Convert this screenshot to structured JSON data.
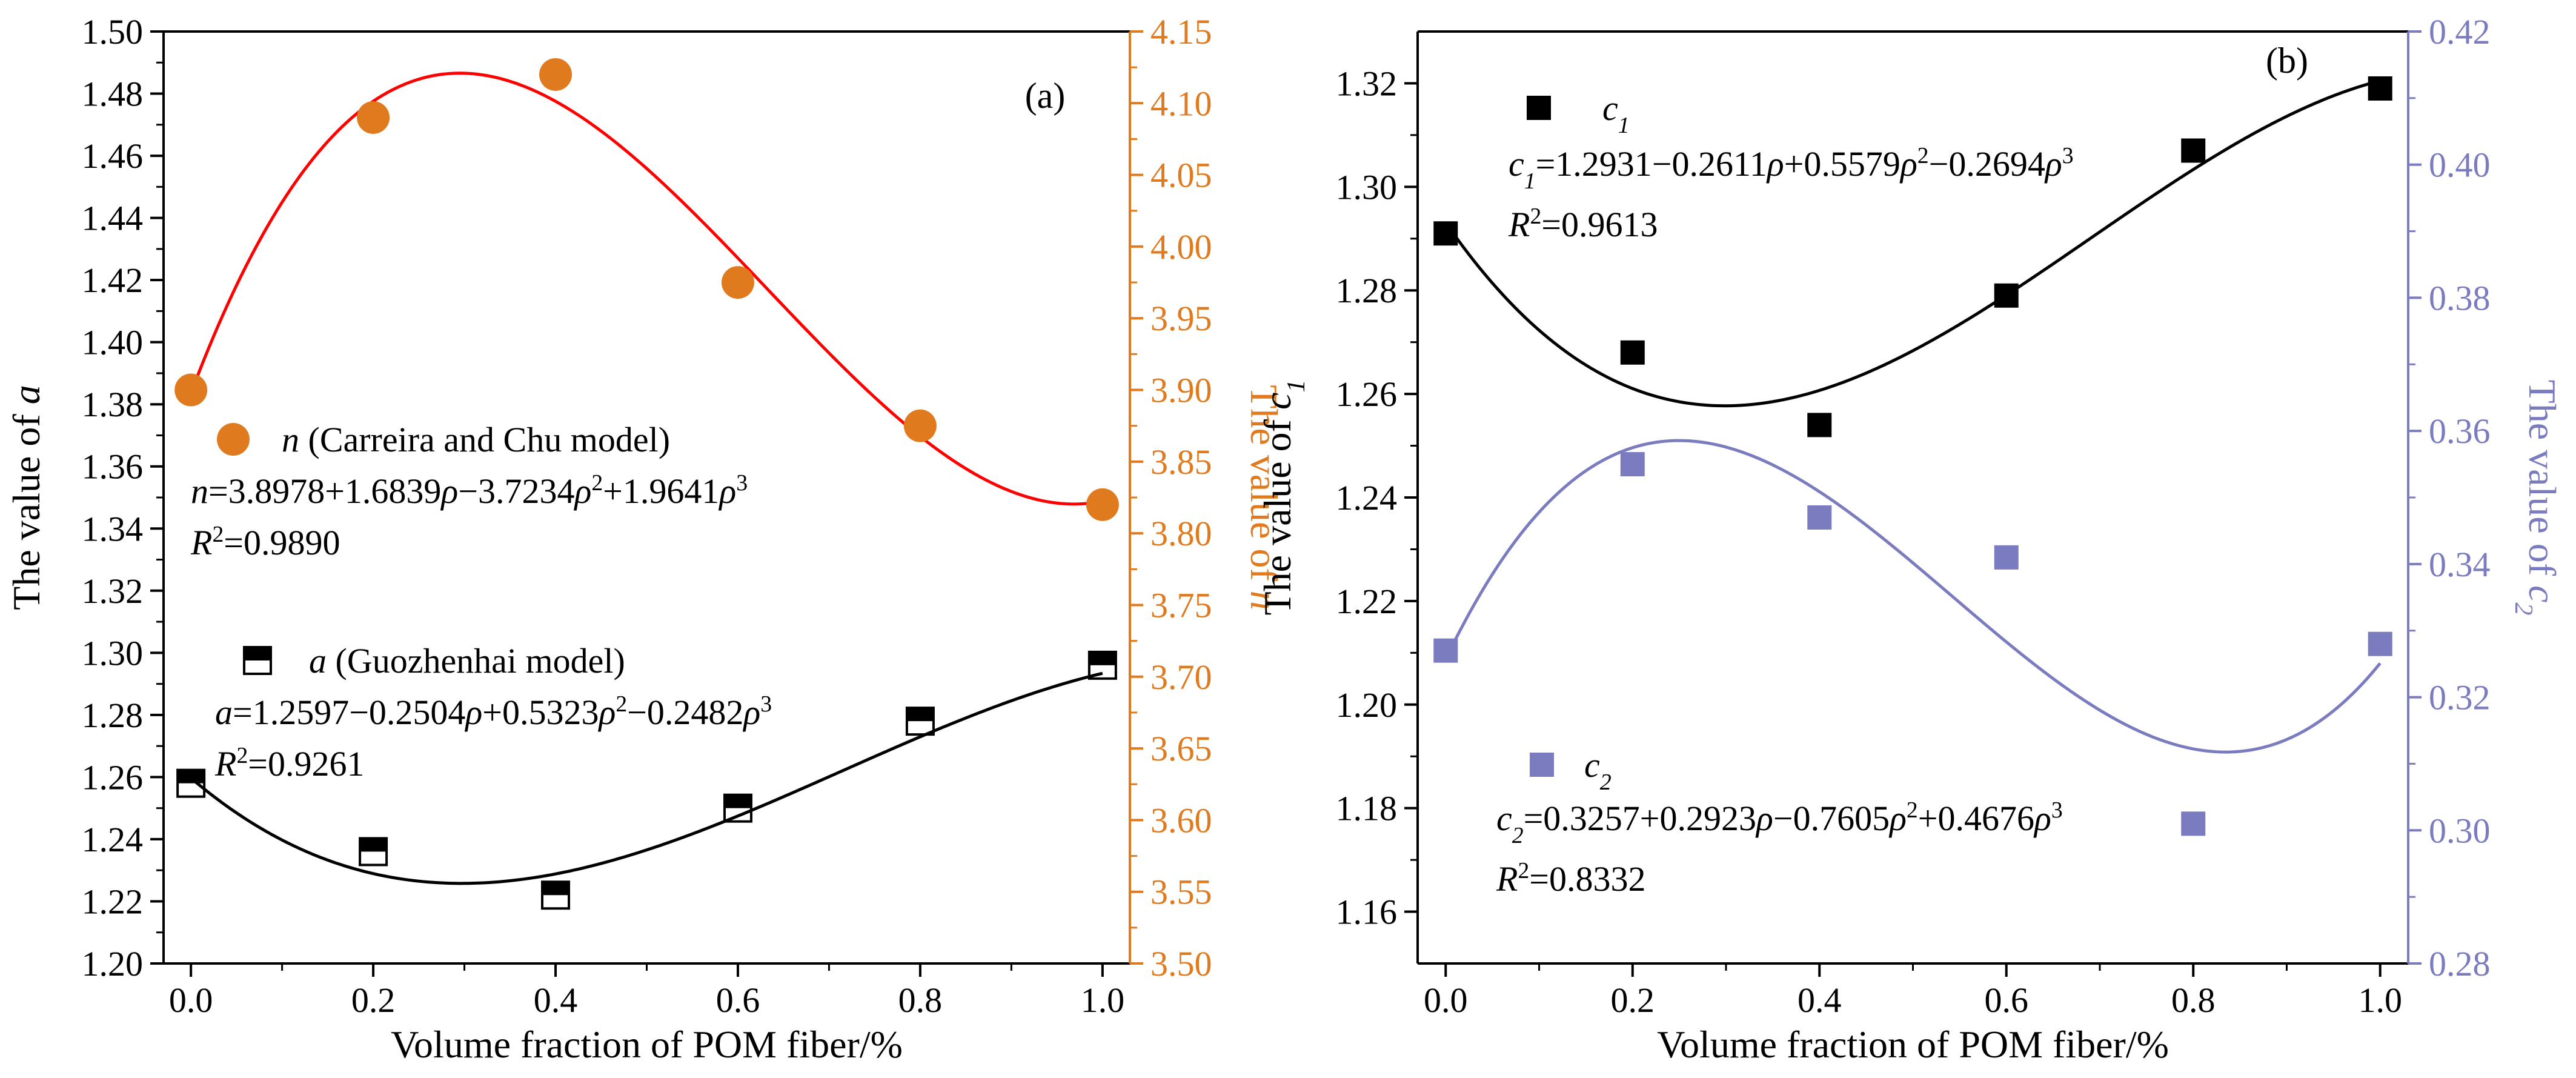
{
  "chart_data": [
    {
      "type": "scatter",
      "panel_label": "(a)",
      "xlabel": "Volume fraction of POM fiber/%",
      "ylabel_left_prefix": "The value of ",
      "ylabel_left_var": "a",
      "ylabel_right_prefix": "The value of ",
      "ylabel_right_var": "n",
      "xlim": [
        -0.03,
        1.03
      ],
      "ylim_left": [
        1.2,
        1.5
      ],
      "ylim_right": [
        3.5,
        4.15
      ],
      "x_ticks": [
        "0.0",
        "0.2",
        "0.4",
        "0.6",
        "0.8",
        "1.0"
      ],
      "y_left_ticks": [
        "1.20",
        "1.22",
        "1.24",
        "1.26",
        "1.28",
        "1.30",
        "1.32",
        "1.34",
        "1.36",
        "1.38",
        "1.40",
        "1.42",
        "1.44",
        "1.46",
        "1.48",
        "1.50"
      ],
      "y_right_ticks": [
        "3.50",
        "3.55",
        "3.60",
        "3.65",
        "3.70",
        "3.75",
        "3.80",
        "3.85",
        "3.90",
        "3.95",
        "4.00",
        "4.05",
        "4.10",
        "4.15"
      ],
      "colors": {
        "n_series": "#e07a1f",
        "n_fit": "#ff0000",
        "a_series": "#000000",
        "right_axis": "#e07a1f"
      },
      "series": [
        {
          "var": "n",
          "label_rest": " (Carreira and Chu model)",
          "axis": "right",
          "marker": "filled-circle",
          "x": [
            0.0,
            0.2,
            0.4,
            0.6,
            0.8,
            1.0
          ],
          "y": [
            3.9,
            4.09,
            4.12,
            3.975,
            3.875,
            3.82
          ],
          "fit": [
            3.8978,
            1.6839,
            -3.7234,
            1.9641
          ],
          "equation": "n=3.8978+1.6839ρ−3.7234ρ²+1.9641ρ³",
          "r2": "R²=0.9890"
        },
        {
          "var": "a",
          "label_rest": " (Guozhenhai model)",
          "axis": "left",
          "marker": "half-filled-square",
          "x": [
            0.0,
            0.2,
            0.4,
            0.6,
            0.8,
            1.0
          ],
          "y": [
            1.258,
            1.236,
            1.222,
            1.25,
            1.278,
            1.296
          ],
          "fit": [
            1.2597,
            -0.2504,
            0.5323,
            -0.2482
          ],
          "equation": "a=1.2597−0.2504ρ+0.5323ρ²−0.2482ρ³",
          "r2": "R²=0.9261"
        }
      ]
    },
    {
      "type": "scatter",
      "panel_label": "(b)",
      "xlabel": "Volume fraction of POM fiber/%",
      "ylabel_left_prefix": "The value of ",
      "ylabel_left_var": "c",
      "ylabel_left_sub": "1",
      "ylabel_right_prefix": "The value of ",
      "ylabel_right_var": "c",
      "ylabel_right_sub": "2",
      "xlim": [
        -0.03,
        1.03
      ],
      "ylim_left": [
        1.15,
        1.33
      ],
      "ylim_right": [
        0.28,
        0.42
      ],
      "x_ticks": [
        "0.0",
        "0.2",
        "0.4",
        "0.6",
        "0.8",
        "1.0"
      ],
      "y_left_ticks": [
        "1.16",
        "1.18",
        "1.20",
        "1.22",
        "1.24",
        "1.26",
        "1.28",
        "1.30",
        "1.32"
      ],
      "y_right_ticks": [
        "0.28",
        "0.30",
        "0.32",
        "0.34",
        "0.36",
        "0.38",
        "0.40",
        "0.42"
      ],
      "colors": {
        "c1_series": "#000000",
        "c2_series": "#7b7bbf",
        "right_axis": "#7b7bbf"
      },
      "series": [
        {
          "var": "c",
          "sub": "1",
          "axis": "left",
          "marker": "filled-square",
          "x": [
            0.0,
            0.2,
            0.4,
            0.6,
            0.8,
            1.0
          ],
          "y": [
            1.291,
            1.268,
            1.254,
            1.279,
            1.307,
            1.319
          ],
          "fit": [
            1.2931,
            -0.2611,
            0.5579,
            -0.2694
          ],
          "equation": "c₁=1.2931−0.2611ρ+0.5579ρ²−0.2694ρ³",
          "r2": "R²=0.9613"
        },
        {
          "var": "c",
          "sub": "2",
          "axis": "right",
          "marker": "filled-square",
          "x": [
            0.0,
            0.2,
            0.4,
            0.6,
            0.8,
            1.0
          ],
          "y": [
            0.327,
            0.355,
            0.347,
            0.341,
            0.301,
            0.328
          ],
          "fit": [
            0.3257,
            0.2923,
            -0.7605,
            0.4676
          ],
          "equation": "c₂=0.3257+0.2923ρ−0.7605ρ²+0.4676ρ³",
          "r2": "R²=0.8332"
        }
      ]
    }
  ]
}
